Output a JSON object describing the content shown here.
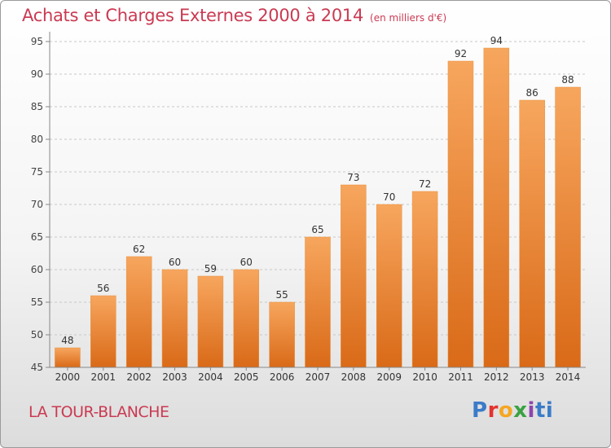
{
  "title": "Achats et Charges Externes 2000 à 2014",
  "subtitle": "(en milliers d'€)",
  "commune": "LA TOUR-BLANCHE",
  "logo": {
    "text": "Proxiti",
    "letters": [
      "P",
      "r",
      "o",
      "x",
      "i",
      "ti"
    ]
  },
  "colors": {
    "bar_top": "#f7a65e",
    "bar_bottom": "#d96a18",
    "accent": "#ca3a52"
  },
  "chart_data": {
    "type": "bar",
    "title": "Achats et Charges Externes 2000 à 2014",
    "subtitle": "(en milliers d'€)",
    "categories": [
      "2000",
      "2001",
      "2002",
      "2003",
      "2004",
      "2005",
      "2006",
      "2007",
      "2008",
      "2009",
      "2010",
      "2011",
      "2012",
      "2013",
      "2014"
    ],
    "values": [
      48,
      56,
      62,
      60,
      59,
      60,
      55,
      65,
      73,
      70,
      72,
      92,
      94,
      86,
      88
    ],
    "yticks": [
      45,
      50,
      55,
      60,
      65,
      70,
      75,
      80,
      85,
      90,
      95
    ],
    "ylim": [
      45,
      96
    ],
    "grid": true,
    "legend": "none"
  }
}
